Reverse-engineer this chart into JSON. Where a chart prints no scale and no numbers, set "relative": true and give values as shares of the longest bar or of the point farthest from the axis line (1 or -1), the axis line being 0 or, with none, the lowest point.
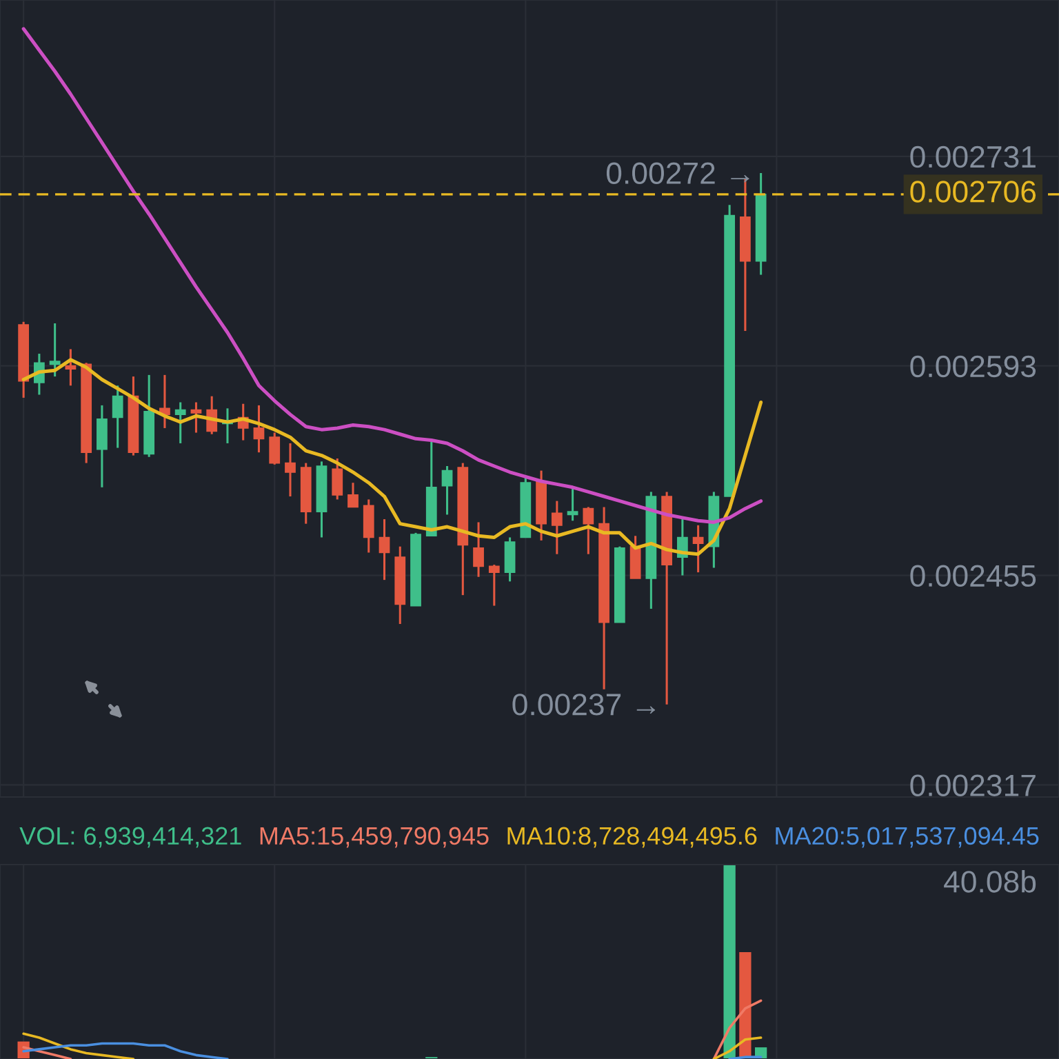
{
  "chart_data": [
    {
      "type": "candlestick",
      "categories": [
        null,
        null,
        null,
        null,
        null,
        null,
        null,
        null,
        null,
        null,
        null,
        null,
        null,
        null,
        null,
        null,
        null,
        null,
        null,
        null,
        null,
        null,
        null,
        null,
        null,
        null,
        null,
        null,
        null,
        null,
        null,
        null,
        null,
        null,
        null,
        null,
        null,
        null,
        null,
        null,
        null,
        null,
        null,
        null,
        null,
        null,
        null,
        null
      ],
      "ohlc": [
        [
          0.00262,
          0.002622,
          0.002572,
          0.002583
        ],
        [
          0.002582,
          0.002601,
          0.002574,
          0.002595
        ],
        [
          0.002594,
          0.002621,
          0.002586,
          0.002596
        ],
        [
          0.002593,
          0.002604,
          0.00258,
          0.002591
        ],
        [
          0.002594,
          0.002595,
          0.002529,
          0.002536
        ],
        [
          0.002538,
          0.002567,
          0.002513,
          0.002558
        ],
        [
          0.002559,
          0.00258,
          0.002539,
          0.002573
        ],
        [
          0.002573,
          0.002586,
          0.002534,
          0.002536
        ],
        [
          0.002535,
          0.002587,
          0.002533,
          0.002563
        ],
        [
          0.002565,
          0.002587,
          0.002552,
          0.002561
        ],
        [
          0.002561,
          0.002569,
          0.002542,
          0.002564
        ],
        [
          0.002564,
          0.002569,
          0.002549,
          0.002562
        ],
        [
          0.002564,
          0.002573,
          0.002548,
          0.00255
        ],
        [
          0.002555,
          0.002565,
          0.002542,
          0.002557
        ],
        [
          0.002559,
          0.002568,
          0.002544,
          0.002552
        ],
        [
          0.002552,
          0.002567,
          0.002536,
          0.002545
        ],
        [
          0.002546,
          0.002549,
          0.002528,
          0.002529
        ],
        [
          0.002529,
          0.002542,
          0.002507,
          0.002523
        ],
        [
          0.002526,
          0.002529,
          0.002489,
          0.002497
        ],
        [
          0.002497,
          0.00253,
          0.00248,
          0.002527
        ],
        [
          0.002525,
          0.002532,
          0.002505,
          0.002508
        ],
        [
          0.002508,
          0.002516,
          0.0025,
          0.0025
        ],
        [
          0.002501,
          0.002505,
          0.00247,
          0.00248
        ],
        [
          0.00248,
          0.002492,
          0.002452,
          0.00247
        ],
        [
          0.002467,
          0.002474,
          0.002423,
          0.002436
        ],
        [
          0.002435,
          0.002483,
          0.002435,
          0.002482
        ],
        [
          0.002481,
          0.002543,
          0.002481,
          0.002513
        ],
        [
          0.002514,
          0.002527,
          0.002495,
          0.002524
        ],
        [
          0.002526,
          0.002529,
          0.002442,
          0.002475
        ],
        [
          0.002473,
          0.00249,
          0.002454,
          0.002461
        ],
        [
          0.002461,
          0.002462,
          0.002435,
          0.002457
        ],
        [
          0.002457,
          0.00248,
          0.002451,
          0.002477
        ],
        [
          0.00248,
          0.00252,
          0.00248,
          0.002516
        ],
        [
          0.002517,
          0.002524,
          0.002478,
          0.002489
        ],
        [
          0.002496,
          0.002504,
          0.002469,
          0.002488
        ],
        [
          0.002495,
          0.002513,
          0.002491,
          0.002497
        ],
        [
          0.002499,
          0.0025,
          0.002469,
          0.002489
        ],
        [
          0.002489,
          0.0025,
          0.00238,
          0.002424
        ],
        [
          0.002424,
          0.002474,
          0.002424,
          0.002473
        ],
        [
          0.002474,
          0.002481,
          0.002453,
          0.002453
        ],
        [
          0.002453,
          0.00251,
          0.002433,
          0.002507
        ],
        [
          0.002507,
          0.00251,
          0.00237,
          0.002462
        ],
        [
          0.002467,
          0.002492,
          0.002455,
          0.00248
        ],
        [
          0.00248,
          0.002488,
          0.002457,
          0.002476
        ],
        [
          0.002474,
          0.00251,
          0.00246,
          0.002507
        ],
        [
          0.002507,
          0.002699,
          0.002507,
          0.002692
        ],
        [
          0.002691,
          0.002716,
          0.002616,
          0.002662
        ],
        [
          0.002662,
          0.00272,
          0.002653,
          0.002706
        ]
      ],
      "colors": [
        "#e45840",
        "#3fbf8a",
        "#3fbf8a",
        "#e45840",
        "#e45840",
        "#3fbf8a",
        "#3fbf8a",
        "#e45840",
        "#3fbf8a",
        "#e45840",
        "#3fbf8a",
        "#e45840",
        "#e45840",
        "#3fbf8a",
        "#e45840",
        "#e45840",
        "#e45840",
        "#e45840",
        "#e45840",
        "#3fbf8a",
        "#e45840",
        "#e45840",
        "#e45840",
        "#e45840",
        "#e45840",
        "#3fbf8a",
        "#3fbf8a",
        "#3fbf8a",
        "#e45840",
        "#e45840",
        "#e45840",
        "#3fbf8a",
        "#3fbf8a",
        "#e45840",
        "#e45840",
        "#3fbf8a",
        "#e45840",
        "#e45840",
        "#3fbf8a",
        "#e45840",
        "#3fbf8a",
        "#e45840",
        "#3fbf8a",
        "#e45840",
        "#3fbf8a",
        "#3fbf8a",
        "#e45840",
        "#3fbf8a"
      ],
      "series": [
        {
          "type": "line",
          "color": "#e8b923",
          "values": [
            0.002584,
            0.002589,
            0.00259,
            0.002597,
            0.002592,
            0.002584,
            0.002578,
            0.002572,
            0.002565,
            0.00256,
            0.002556,
            0.00256,
            0.002558,
            0.002556,
            0.002558,
            0.002555,
            0.002551,
            0.002546,
            0.002537,
            0.002534,
            0.002529,
            0.002523,
            0.002516,
            0.002507,
            0.002489,
            0.002487,
            0.002485,
            0.002487,
            0.002484,
            0.002481,
            0.00248,
            0.002487,
            0.002489,
            0.002484,
            0.002481,
            0.002484,
            0.002487,
            0.002483,
            0.002483,
            0.002473,
            0.002476,
            0.002472,
            0.00247,
            0.002469,
            0.002478,
            0.002499,
            0.002534,
            0.002569
          ]
        },
        {
          "type": "line",
          "color": "#cc4fc3",
          "values": [
            0.002815,
            0.002801,
            0.002787,
            0.002772,
            0.002756,
            0.00274,
            0.002724,
            0.002708,
            0.002693,
            0.002677,
            0.002661,
            0.002645,
            0.00263,
            0.002615,
            0.002598,
            0.00258,
            0.00257,
            0.002561,
            0.002553,
            0.002551,
            0.002552,
            0.002554,
            0.002553,
            0.002551,
            0.002548,
            0.002545,
            0.002544,
            0.002542,
            0.002537,
            0.002531,
            0.002527,
            0.002523,
            0.00252,
            0.002517,
            0.002515,
            0.002513,
            0.00251,
            0.002507,
            0.002504,
            0.002501,
            0.002498,
            0.002495,
            0.002493,
            0.002491,
            0.00249,
            0.002493,
            0.002499,
            0.002504
          ]
        }
      ],
      "ylim": [
        0.002309,
        0.002834
      ],
      "yticks": [
        0.002317,
        0.002455,
        0.002593,
        0.002731
      ],
      "ref_lines": [
        {
          "axis": "y",
          "value": 0.002706,
          "label": "0.002706",
          "color": "#e8b923",
          "line_style": "dashed"
        }
      ],
      "annotations": [
        "0.00272 →",
        "0.00237 →"
      ],
      "grid": true,
      "tick_labels": "y"
    },
    {
      "type": "bar",
      "relative": true,
      "categories": [
        null,
        null,
        null,
        null,
        null,
        null,
        null,
        null,
        null,
        null,
        null,
        null,
        null,
        null,
        null,
        null,
        null,
        null,
        null,
        null,
        null,
        null,
        null,
        null,
        null,
        null,
        null,
        null,
        null,
        null,
        null,
        null,
        null,
        null,
        null,
        null,
        null,
        null,
        null,
        null,
        null,
        null,
        null,
        null,
        null,
        null,
        null,
        null
      ],
      "series": [
        {
          "name": "VOL: 6,939,414,321",
          "color": "#3fbf8a",
          "colors": [
            "#e45840",
            "#3fbf8a",
            "#3fbf8a",
            "#e45840",
            "#e45840",
            "#3fbf8a",
            "#3fbf8a",
            "#e45840",
            "#3fbf8a",
            "#e45840",
            "#3fbf8a",
            "#e45840",
            "#e45840",
            "#3fbf8a",
            "#e45840",
            "#e45840",
            "#e45840",
            "#e45840",
            "#e45840",
            "#3fbf8a",
            "#e45840",
            "#e45840",
            "#e45840",
            "#e45840",
            "#e45840",
            "#3fbf8a",
            "#3fbf8a",
            "#3fbf8a",
            "#e45840",
            "#e45840",
            "#e45840",
            "#3fbf8a",
            "#3fbf8a",
            "#e45840",
            "#e45840",
            "#3fbf8a",
            "#e45840",
            "#e45840",
            "#3fbf8a",
            "#e45840",
            "#3fbf8a",
            "#e45840",
            "#3fbf8a",
            "#e45840",
            "#3fbf8a",
            "#3fbf8a",
            "#e45840",
            "#3fbf8a"
          ],
          "values": [
            0.09,
            null,
            null,
            null,
            null,
            null,
            null,
            null,
            null,
            null,
            null,
            null,
            null,
            null,
            null,
            null,
            null,
            null,
            null,
            null,
            null,
            null,
            null,
            null,
            null,
            null,
            0.01,
            null,
            null,
            null,
            null,
            null,
            null,
            null,
            null,
            null,
            null,
            null,
            null,
            null,
            null,
            null,
            null,
            null,
            null,
            1,
            0.55,
            0.06
          ]
        },
        {
          "type": "line",
          "name": "MA5:15,459,790,945",
          "color": "#f07a66",
          "values": [
            0.06,
            0.04,
            0.02,
            0.0,
            null,
            null,
            null,
            null,
            null,
            null,
            null,
            null,
            null,
            null,
            null,
            null,
            null,
            null,
            null,
            null,
            null,
            null,
            null,
            null,
            null,
            null,
            null,
            null,
            null,
            null,
            null,
            null,
            null,
            null,
            null,
            null,
            null,
            null,
            null,
            null,
            null,
            null,
            null,
            null,
            0.0,
            0.16,
            0.26,
            0.3
          ]
        },
        {
          "type": "line",
          "name": "MA10:8,728,494,495.6",
          "color": "#e8b923",
          "values": [
            0.13,
            0.11,
            0.08,
            0.05,
            0.03,
            0.02,
            0.01,
            0.0,
            null,
            null,
            null,
            null,
            null,
            null,
            null,
            null,
            null,
            null,
            null,
            null,
            null,
            null,
            null,
            null,
            null,
            null,
            null,
            null,
            null,
            null,
            null,
            null,
            null,
            null,
            null,
            null,
            null,
            null,
            null,
            null,
            null,
            null,
            null,
            null,
            0.0,
            0.04,
            0.1,
            0.11
          ]
        },
        {
          "type": "line",
          "name": "MA20:5,017,537,094.45",
          "color": "#4a8fe0",
          "values": [
            0.04,
            0.05,
            0.06,
            0.07,
            0.07,
            0.08,
            0.08,
            0.08,
            0.07,
            0.07,
            0.04,
            0.02,
            0.01,
            0.0,
            null,
            null,
            null,
            null,
            null,
            null,
            null,
            null,
            null,
            null,
            null,
            null,
            null,
            null,
            null,
            null,
            null,
            null,
            null,
            null,
            null,
            null,
            null,
            null,
            null,
            null,
            null,
            null,
            null,
            null,
            null,
            0.0,
            0.01,
            0.01
          ]
        }
      ],
      "annotations": [
        "40.08b"
      ],
      "grid": "x",
      "legend": "top",
      "tick_labels": false
    }
  ]
}
